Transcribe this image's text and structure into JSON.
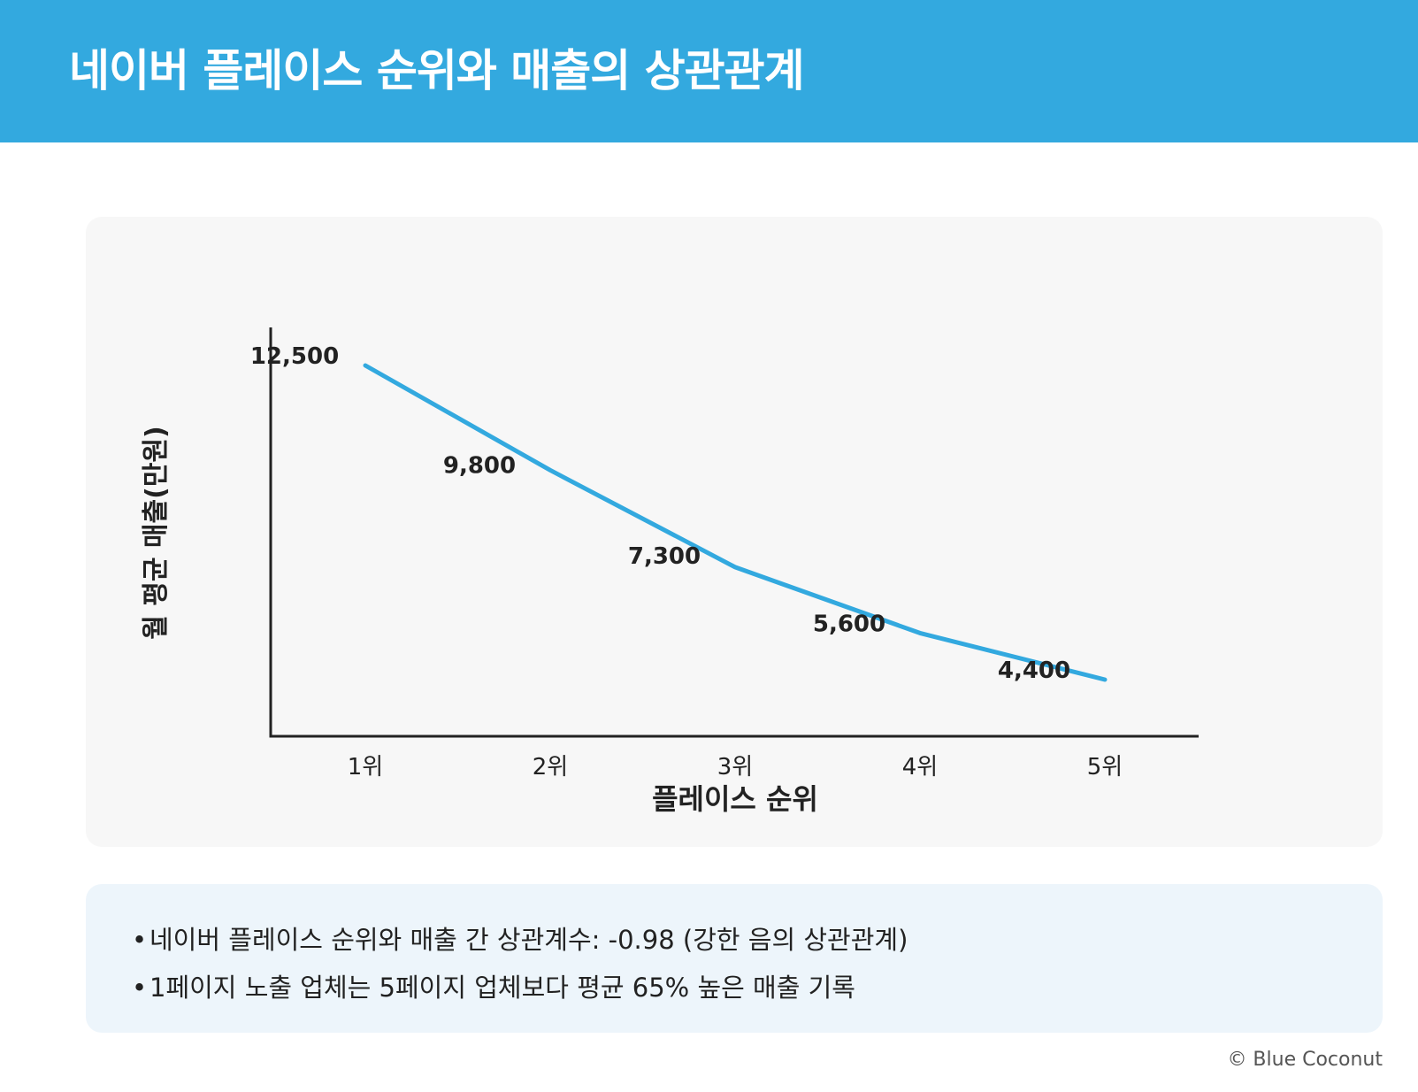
{
  "header": {
    "title": "네이버 플레이스 순위와 매출의 상관관계"
  },
  "chart_data": {
    "type": "line",
    "title": "네이버 플레이스 순위와 매출의 상관관계",
    "xlabel": "플레이스 순위",
    "ylabel": "월 평균 매출(만원)",
    "categories": [
      "1위",
      "2위",
      "3위",
      "4위",
      "5위"
    ],
    "series": [
      {
        "values": [
          12500,
          9800,
          7300,
          5600,
          4400
        ]
      }
    ],
    "data_labels": [
      "12,500",
      "9,800",
      "7,300",
      "5,600",
      "4,400"
    ],
    "ylim": [
      2000,
      13000
    ],
    "grid": false,
    "legend": "none",
    "line_color": "#33a9df"
  },
  "notes": [
    "네이버 플레이스 순위와 매출 간 상관계수: -0.98 (강한 음의 상관관계)",
    "1페이지 노출 업체는 5페이지 업체보다 평균 65% 높은 매출 기록"
  ],
  "bullet": "•",
  "footer": {
    "copyright": "© Blue Coconut"
  },
  "colors": {
    "accent": "#33a9df",
    "chart_background": "#f7f7f7",
    "notes_background": "#edf5fb"
  }
}
